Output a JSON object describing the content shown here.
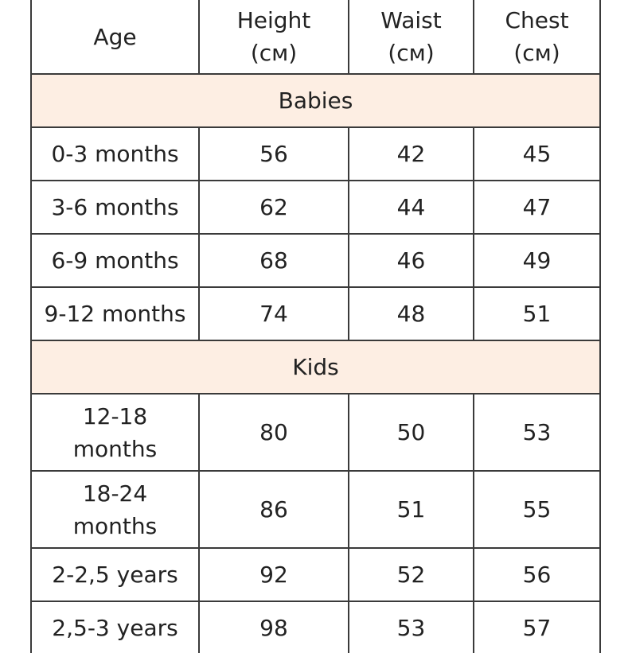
{
  "table": {
    "headers": {
      "age": "Age",
      "height": [
        "Height",
        "(см)"
      ],
      "waist": [
        "Waist",
        "(см)"
      ],
      "chest": [
        "Chest",
        "(см)"
      ]
    },
    "sections": [
      {
        "title": "Babies",
        "rows": [
          {
            "age": [
              "0-3 months"
            ],
            "height": "56",
            "waist": "42",
            "chest": "45"
          },
          {
            "age": [
              "3-6 months"
            ],
            "height": "62",
            "waist": "44",
            "chest": "47"
          },
          {
            "age": [
              "6-9 months"
            ],
            "height": "68",
            "waist": "46",
            "chest": "49"
          },
          {
            "age": [
              "9-12 months"
            ],
            "height": "74",
            "waist": "48",
            "chest": "51"
          }
        ]
      },
      {
        "title": "Kids",
        "rows": [
          {
            "age": [
              "12-18",
              "months"
            ],
            "height": "80",
            "waist": "50",
            "chest": "53"
          },
          {
            "age": [
              "18-24",
              "months"
            ],
            "height": "86",
            "waist": "51",
            "chest": "55"
          },
          {
            "age": [
              "2-2,5 years"
            ],
            "height": "92",
            "waist": "52",
            "chest": "56"
          },
          {
            "age": [
              "2,5-3 years"
            ],
            "height": "98",
            "waist": "53",
            "chest": "57"
          }
        ]
      }
    ],
    "colors": {
      "section_background": "#fdeee3",
      "border": "#3a3a3a",
      "text": "#222222"
    }
  }
}
